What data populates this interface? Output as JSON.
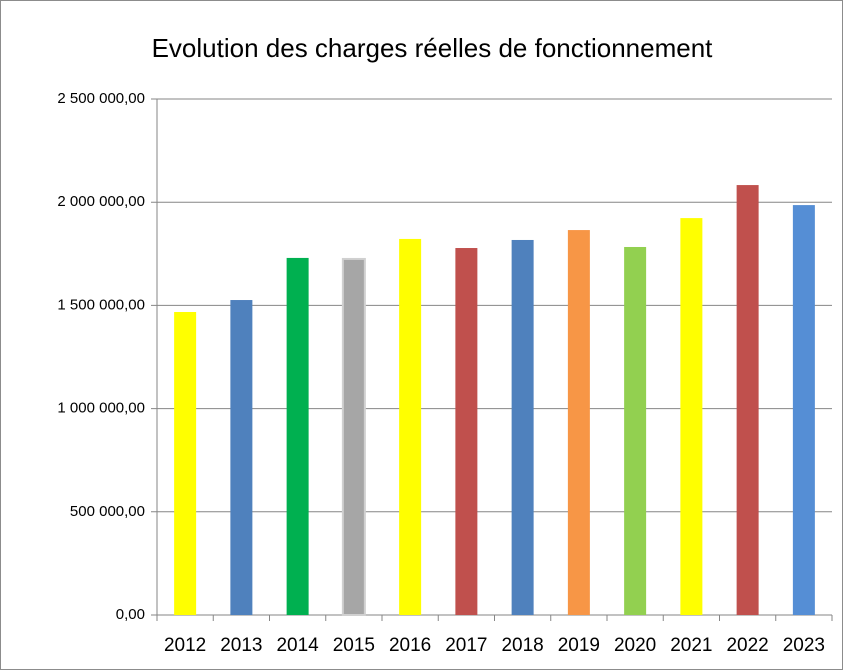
{
  "chart_data": {
    "type": "bar",
    "title": "Evolution des charges réelles de fonctionnement",
    "categories": [
      "2012",
      "2013",
      "2014",
      "2015",
      "2016",
      "2017",
      "2018",
      "2019",
      "2020",
      "2021",
      "2022",
      "2023"
    ],
    "values": [
      1468000,
      1526000,
      1730000,
      1725000,
      1822000,
      1778000,
      1817000,
      1865000,
      1783000,
      1923000,
      2083000,
      1986000
    ],
    "colors": [
      "#ffff00",
      "#4f81bd",
      "#00b050",
      "#a6a6a6",
      "#ffff00",
      "#c0504d",
      "#4f81bd",
      "#f79646",
      "#92d050",
      "#ffff00",
      "#c0504d",
      "#558ed5"
    ],
    "ylim": [
      0,
      2500000
    ],
    "yticks": [
      {
        "value": 0,
        "label": "0,00"
      },
      {
        "value": 500000,
        "label": "500 000,00"
      },
      {
        "value": 1000000,
        "label": "1 000 000,00"
      },
      {
        "value": 1500000,
        "label": "1 500 000,00"
      },
      {
        "value": 2000000,
        "label": "2 000 000,00"
      },
      {
        "value": 2500000,
        "label": "2 500 000,00"
      }
    ],
    "grid": true
  }
}
